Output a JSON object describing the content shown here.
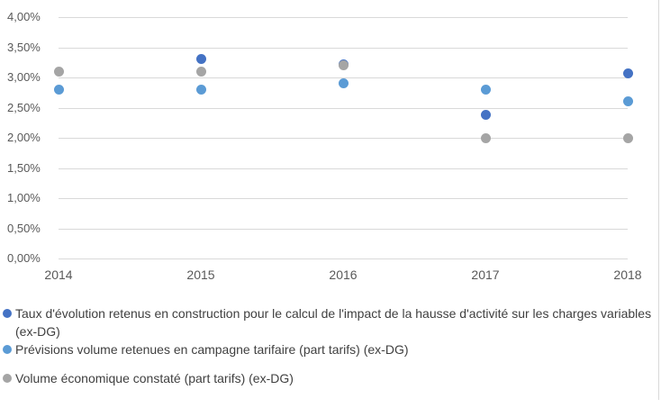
{
  "chart_data": {
    "type": "scatter",
    "x_tick_labels": [
      "2014",
      "2015",
      "2016",
      "2017",
      "2018"
    ],
    "y_axis": {
      "min": 0,
      "max": 4,
      "step": 0.5,
      "unit": "%",
      "tick_labels_top_to_bottom": [
        "4,00%",
        "3,50%",
        "3,00%",
        "2,50%",
        "2,00%",
        "1,50%",
        "1,00%",
        "0,50%",
        "0,00%"
      ]
    },
    "grid": true,
    "legend_position": "bottom",
    "series": [
      {
        "name": "Taux d'évolution retenus en construction pour le calcul de l'impact de la hausse d'activité sur les charges variables (ex-DG)",
        "color": "#4472C4",
        "values": [
          null,
          3.3,
          3.22,
          2.38,
          3.07
        ]
      },
      {
        "name": "Prévisions volume retenues en campagne tarifaire (part tarifs) (ex-DG)",
        "color": "#5B9BD5",
        "values": [
          2.8,
          2.8,
          2.9,
          2.8,
          2.6
        ]
      },
      {
        "name": "Volume économique constaté (part tarifs) (ex-DG)",
        "color": "#A5A5A5",
        "values": [
          3.1,
          3.1,
          3.2,
          2.0,
          2.0
        ]
      }
    ]
  },
  "colors": {
    "gridline": "#D9D9D9",
    "axis_text": "#595959",
    "legend_text": "#404040",
    "border": "#D9D9D9",
    "background": "#FFFFFF"
  }
}
